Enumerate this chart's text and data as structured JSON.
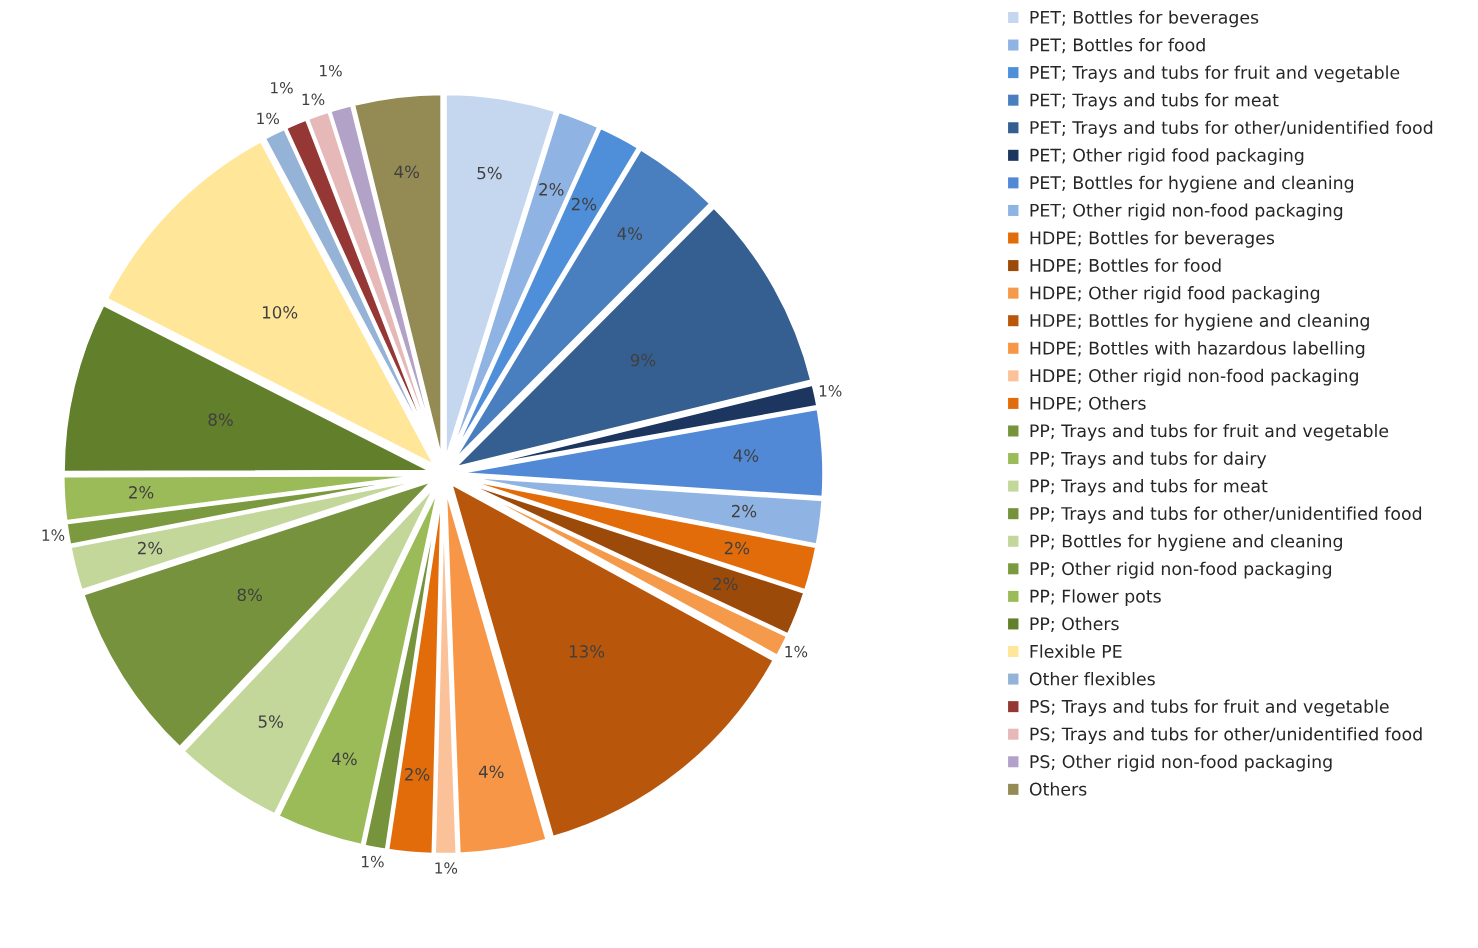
{
  "chart_data": {
    "type": "pie",
    "categories": [
      "PET; Bottles for beverages",
      "PET; Bottles for food",
      "PET; Trays and tubs for fruit and vegetable",
      "PET; Trays and tubs for meat",
      "PET; Trays and tubs for other/unidentified food",
      "PET; Other rigid food packaging",
      "PET; Bottles for hygiene and cleaning",
      "PET; Other rigid non-food packaging",
      "HDPE; Bottles for beverages",
      "HDPE; Bottles for food",
      "HDPE; Other rigid food packaging",
      "HDPE; Bottles for hygiene and cleaning",
      "HDPE; Bottles with hazardous labelling",
      "HDPE; Other rigid non-food packaging",
      "HDPE; Others",
      "PP; Trays and tubs for fruit and vegetable",
      "PP; Trays and tubs for dairy",
      "PP; Trays and tubs for meat",
      "PP; Trays and tubs for other/unidentified food",
      "PP; Bottles for hygiene and cleaning",
      "PP; Other rigid non-food packaging",
      "PP; Flower pots",
      "PP; Others",
      "Flexible PE",
      "Other flexibles",
      "PS; Trays and tubs for fruit and vegetable",
      "PS; Trays and tubs for other/unidentified food",
      "PS; Other rigid non-food packaging",
      "Others"
    ],
    "values": [
      4.9,
      1.9,
      1.9,
      3.9,
      8.8,
      1,
      3.9,
      2,
      2,
      2,
      1,
      12.7,
      3.9,
      1,
      2,
      1,
      3.9,
      4.9,
      8,
      2,
      1,
      2,
      7.6,
      9.8,
      1,
      1,
      1,
      1,
      3.9
    ],
    "value_labels": [
      "5%",
      "2%",
      "2%",
      "4%",
      "9%",
      "1%",
      "4%",
      "2%",
      "2%",
      "2%",
      "1%",
      "13%",
      "4%",
      "1%",
      "2%",
      "1%",
      "4%",
      "5%",
      "8%",
      "2%",
      "1%",
      "2%",
      "8%",
      "10%",
      "1%",
      "1%",
      "1%",
      "1%",
      "4%"
    ],
    "colors": [
      "#c5d7ef",
      "#8fb4e3",
      "#4f8ed8",
      "#4a7fbf",
      "#355f91",
      "#1c3660",
      "#5189d6",
      "#8fb4e3",
      "#e36c0a",
      "#9c4a0a",
      "#f59a4a",
      "#b8570b",
      "#f79646",
      "#fbc29a",
      "#e36c0a",
      "#77933c",
      "#9bbb59",
      "#c4d79b",
      "#76923c",
      "#c4d79b",
      "#7b9a40",
      "#9bbb59",
      "#627f2c",
      "#ffe699",
      "#95b3d7",
      "#953735",
      "#e6b9b8",
      "#b3a2c7",
      "#948a54"
    ],
    "legend": "right"
  }
}
